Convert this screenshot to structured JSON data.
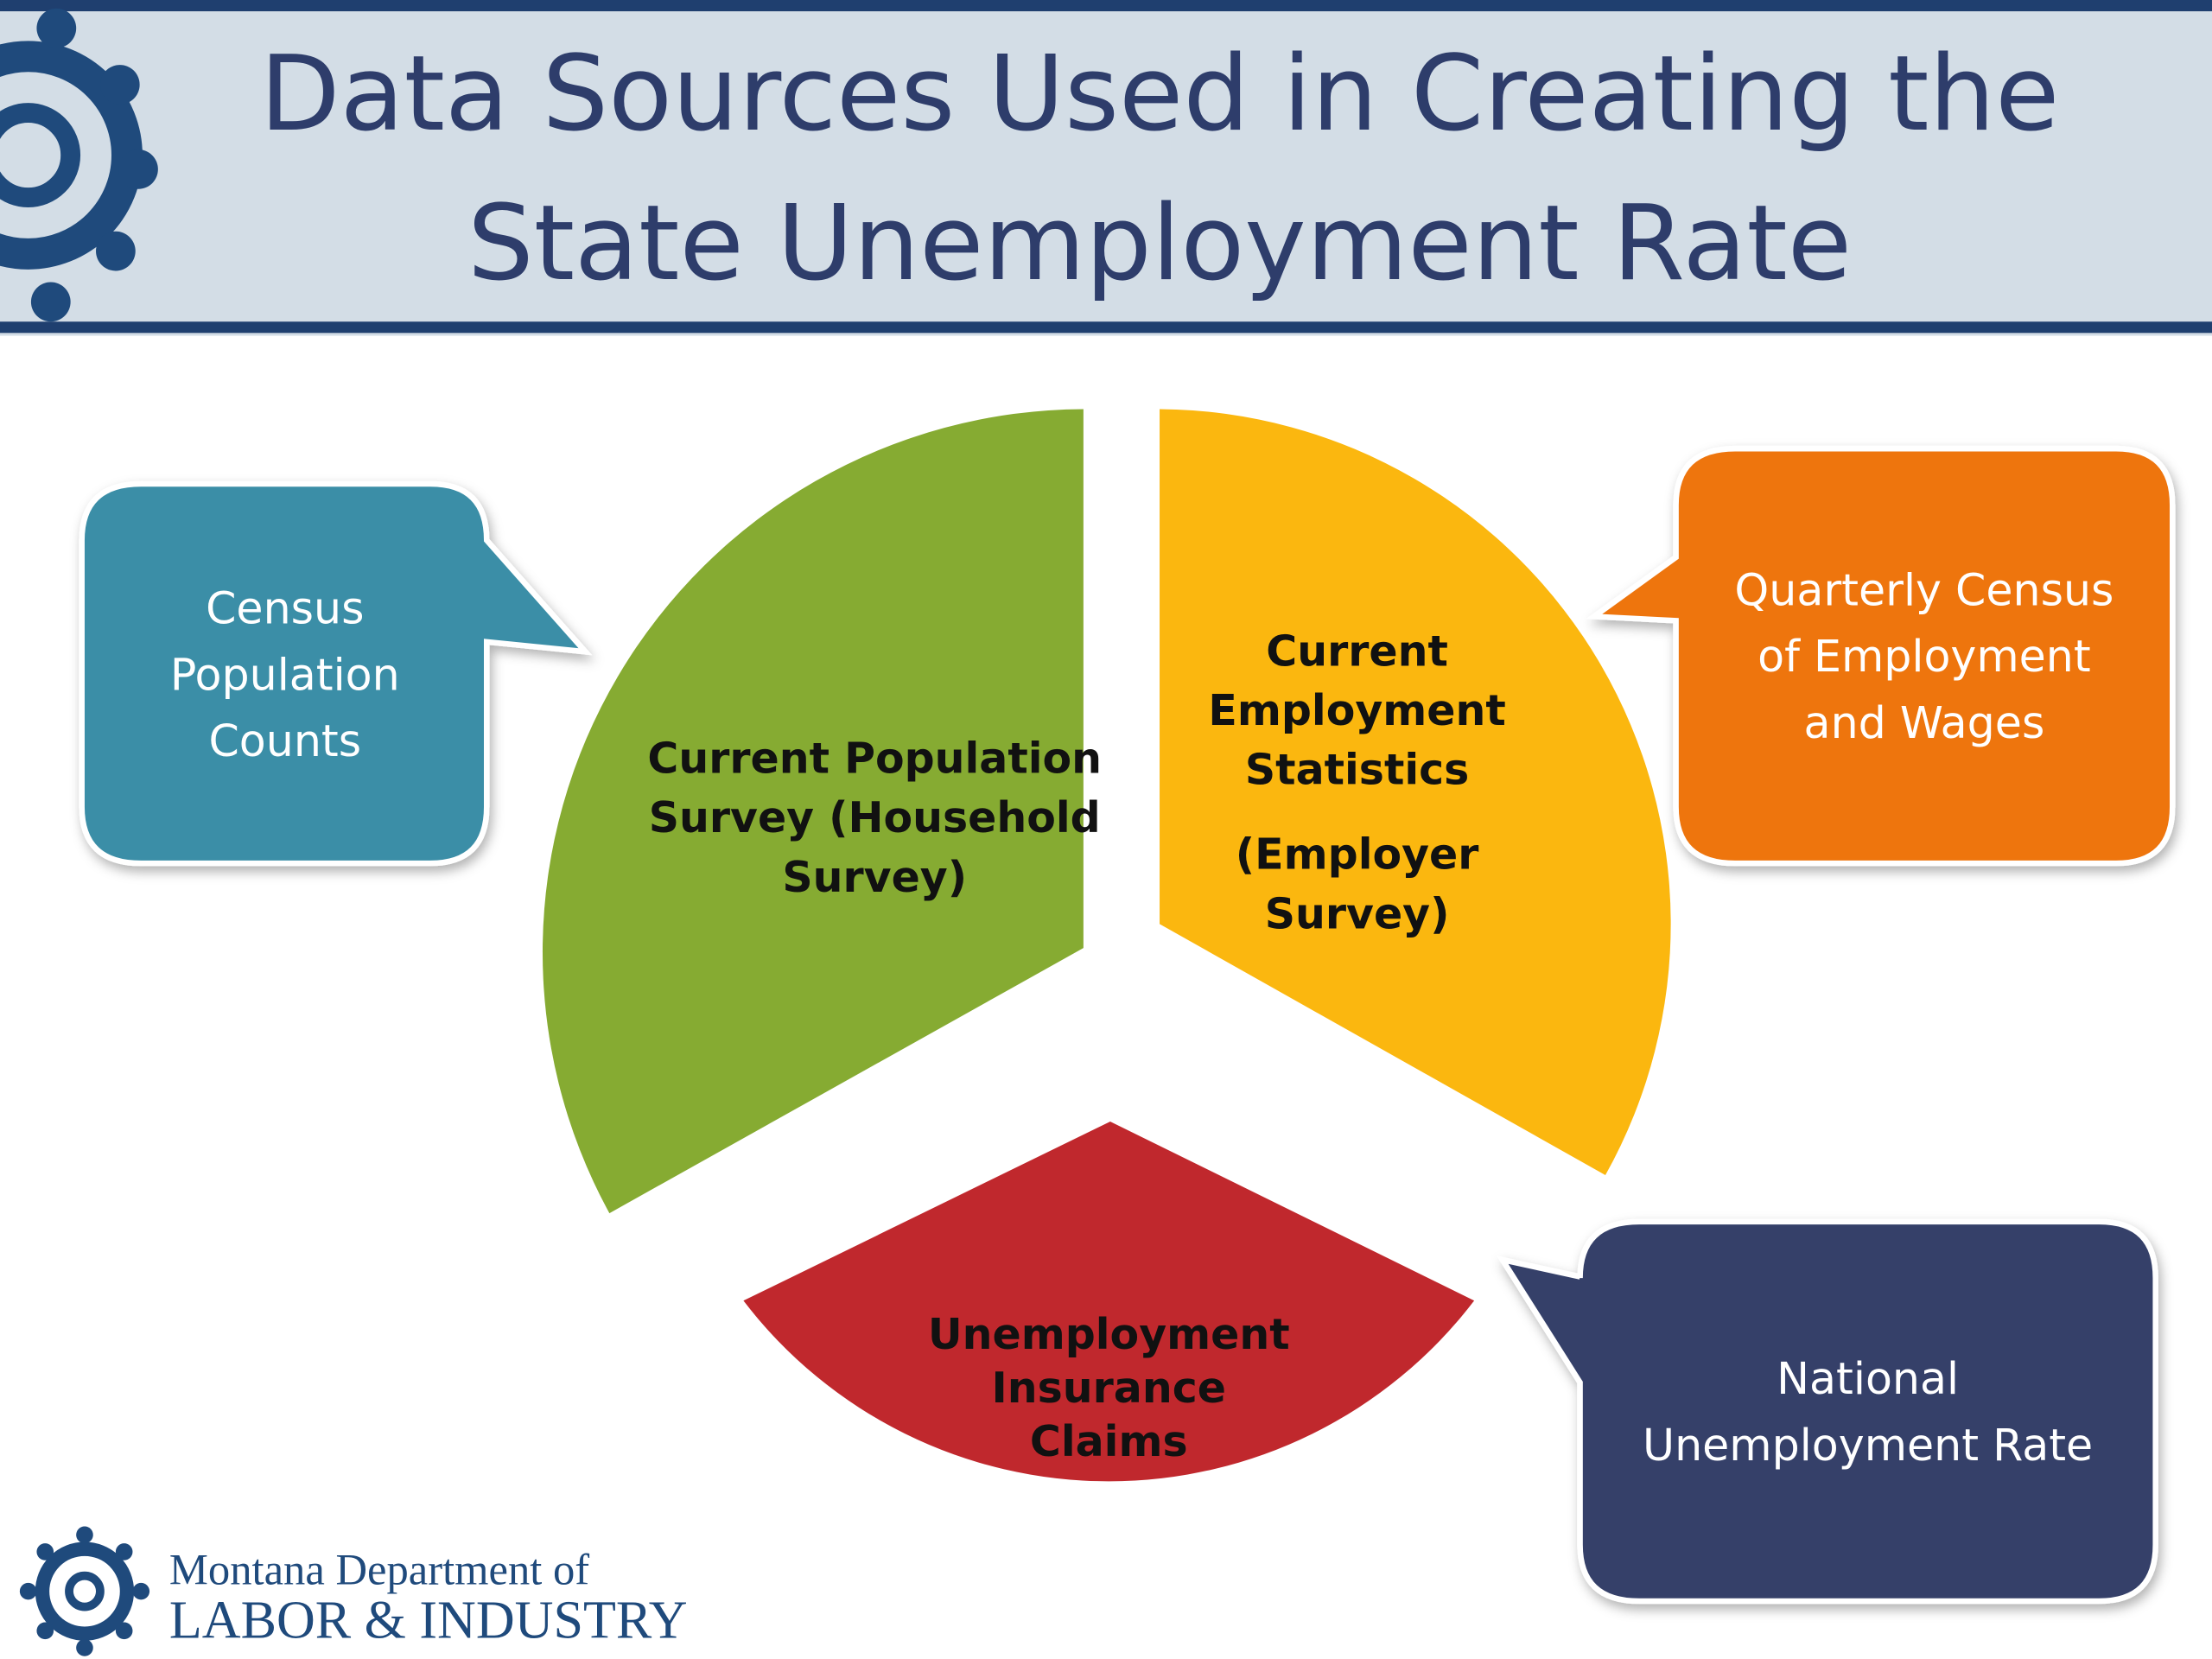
{
  "header": {
    "title_lines": [
      "Data Sources Used in Creating the",
      "State Unemployment Rate"
    ]
  },
  "segments": [
    {
      "lines": [
        "Current Population",
        "Survey (Household",
        "Survey)"
      ]
    },
    {
      "lines": [
        "Current",
        "Employment",
        "Statistics",
        "(Employer",
        "Survey)"
      ]
    },
    {
      "lines": [
        "Unemployment",
        "Insurance",
        "Claims"
      ]
    }
  ],
  "callouts": [
    {
      "lines": [
        "Census",
        "Population",
        "Counts"
      ]
    },
    {
      "lines": [
        "Quarterly Census",
        "of Employment",
        "and Wages"
      ]
    },
    {
      "lines": [
        "National",
        "Unemployment Rate"
      ]
    }
  ],
  "footer": {
    "org_line1": "Montana Department of",
    "org_line2": "LABOR & INDUSTRY"
  }
}
